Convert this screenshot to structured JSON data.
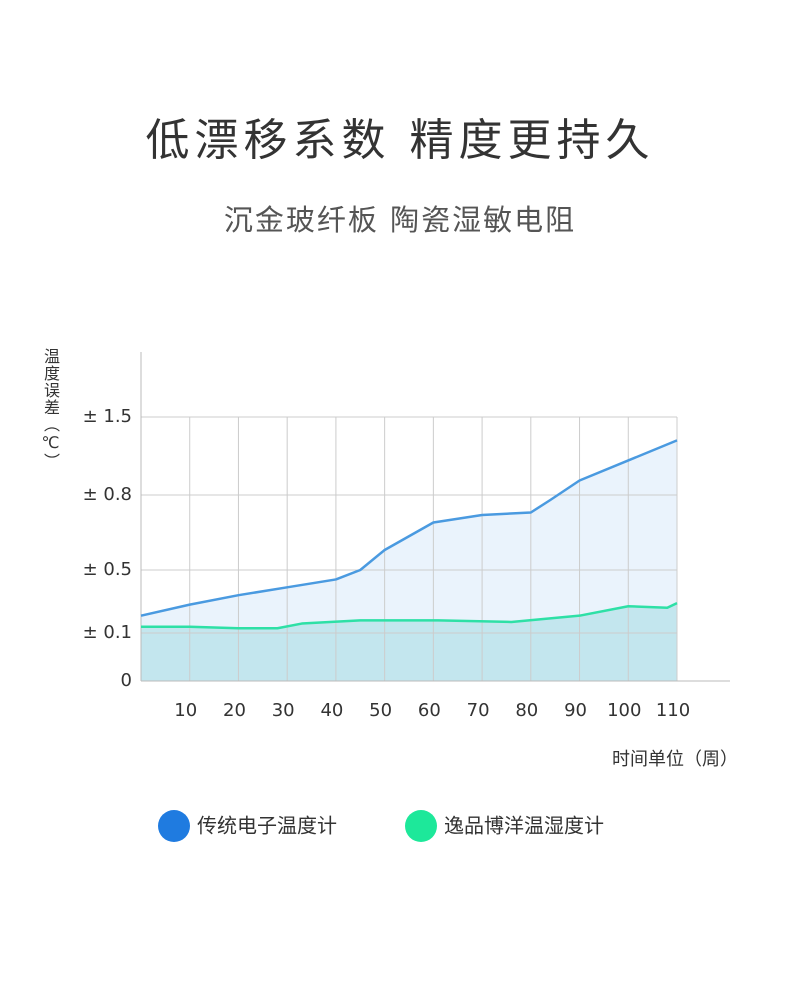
{
  "chart_data": {
    "type": "line",
    "title": "低漂移系数 精度更持久",
    "subtitle": "沉金玻纤板 陶瓷湿敏电阻",
    "y_label": "温度误差（℃）",
    "x_label": "时间单位（周）",
    "xlim": [
      0,
      110
    ],
    "xticks": [
      10,
      20,
      30,
      40,
      50,
      60,
      70,
      80,
      90,
      100,
      110
    ],
    "ylim": [
      0,
      1.5
    ],
    "yticks": [
      0,
      {
        "value": 0.1,
        "label": "± 0.1"
      },
      {
        "value": 0.5,
        "label": "± 0.5"
      },
      {
        "value": 0.8,
        "label": "± 0.8"
      },
      {
        "value": 1.5,
        "label": "± 1.5"
      }
    ],
    "grid": true,
    "series": [
      {
        "name": "传统电子温度计",
        "color": "#4a9ae0",
        "legend_color": "#1f7be0",
        "fill": "#eaf3fc",
        "x": [
          0,
          10,
          20,
          30,
          40,
          45,
          50,
          60,
          70,
          80,
          84,
          90,
          100,
          110
        ],
        "values": [
          0.21,
          0.28,
          0.34,
          0.39,
          0.44,
          0.5,
          0.58,
          0.69,
          0.72,
          0.73,
          0.78,
          0.93,
          1.11,
          1.29
        ]
      },
      {
        "name": "逸品博洋温湿度计",
        "color": "#2ee0a6",
        "legend_color": "#1de89a",
        "fill": "#c3e6ee",
        "x": [
          0,
          10,
          20,
          28,
          33,
          45,
          61,
          76,
          90,
          100,
          108,
          110
        ],
        "values": [
          0.14,
          0.14,
          0.13,
          0.13,
          0.16,
          0.18,
          0.18,
          0.17,
          0.21,
          0.27,
          0.26,
          0.29
        ]
      }
    ]
  }
}
